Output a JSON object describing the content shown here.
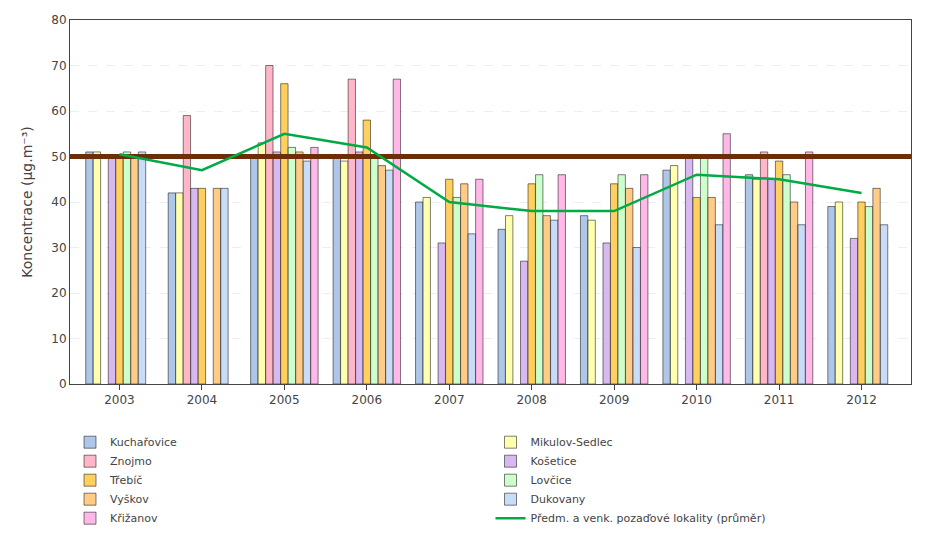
{
  "chart_data": {
    "type": "bar",
    "ylabel": "Koncentrace (µg.m⁻³)",
    "x": [
      2003,
      2004,
      2005,
      2006,
      2007,
      2008,
      2009,
      2010,
      2011,
      2012
    ],
    "xlim": [
      2002.4,
      2012.6
    ],
    "xticks": [
      2003,
      2004,
      2005,
      2006,
      2007,
      2008,
      2009,
      2010,
      2011,
      2012
    ],
    "ylim": [
      0,
      80
    ],
    "yticks": [
      0,
      10,
      20,
      30,
      40,
      50,
      60,
      70,
      80
    ],
    "grid": "y",
    "legend": "bottom",
    "series": [
      {
        "name": "Kuchařovice",
        "color": "#aec6e8",
        "values": [
          51,
          42,
          50,
          50,
          40,
          34,
          37,
          47,
          46,
          39
        ]
      },
      {
        "name": "Mikulov-Sedlec",
        "color": "#ffffb0",
        "values": [
          51,
          42,
          53,
          49,
          41,
          37,
          36,
          48,
          45,
          40
        ]
      },
      {
        "name": "Znojmo",
        "color": "#ffb6c8",
        "values": [
          null,
          59,
          70,
          67,
          null,
          null,
          null,
          null,
          51,
          null
        ]
      },
      {
        "name": "Košetice",
        "color": "#d8b8f0",
        "values": [
          50,
          43,
          51,
          51,
          31,
          27,
          31,
          50,
          45,
          32
        ]
      },
      {
        "name": "Třebíč",
        "color": "#ffd060",
        "values": [
          50,
          43,
          66,
          58,
          45,
          44,
          44,
          41,
          49,
          40
        ]
      },
      {
        "name": "Lovčice",
        "color": "#ccffcc",
        "values": [
          51,
          null,
          52,
          50,
          41,
          46,
          46,
          50,
          46,
          39
        ]
      },
      {
        "name": "Vyškov",
        "color": "#ffcc88",
        "values": [
          50,
          43,
          51,
          48,
          44,
          37,
          43,
          41,
          40,
          43
        ]
      },
      {
        "name": "Dukovany",
        "color": "#c8dcf8",
        "values": [
          51,
          43,
          49,
          47,
          33,
          36,
          30,
          35,
          35,
          35
        ]
      },
      {
        "name": "Křižanov",
        "color": "#ffb8e8",
        "values": [
          null,
          null,
          52,
          67,
          45,
          46,
          46,
          55,
          51,
          null
        ]
      },
      {
        "name": "Předm. a venk. pozaďové lokality (průměr)",
        "type": "line",
        "color": "#00aa44",
        "values": [
          50.5,
          47,
          55,
          52,
          40,
          38,
          38,
          46,
          45,
          42
        ]
      }
    ],
    "threshold": {
      "value": 50,
      "color": "#6b2d0a"
    }
  }
}
